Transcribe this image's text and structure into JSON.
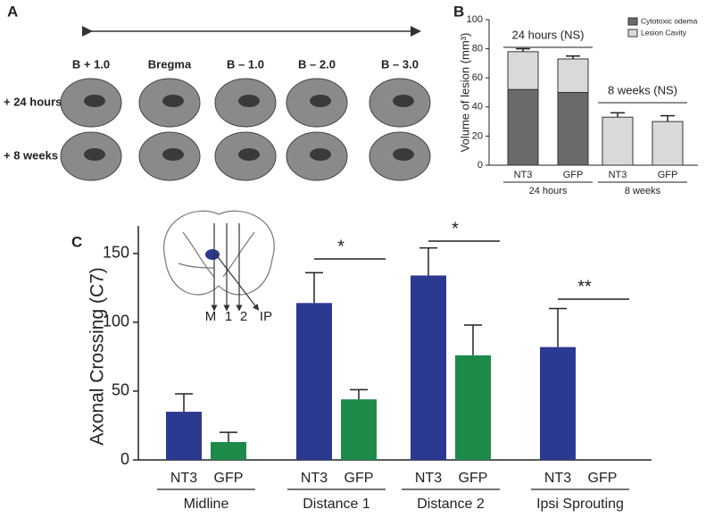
{
  "panel_a": {
    "panel_label": "A",
    "columns": [
      "B + 1.0",
      "Bregma",
      "B – 1.0",
      "B – 2.0",
      "B – 3.0"
    ],
    "rows": [
      "+ 24 hours",
      "+ 8 weeks"
    ]
  },
  "chart_data": [
    {
      "type": "stacked-bar",
      "panel_label": "B",
      "y_label": "Volume of lesion (mm³)",
      "categories": [
        "NT3",
        "GFP",
        "NT3",
        "GFP"
      ],
      "groups": [
        "24 hours",
        "8 weeks"
      ],
      "annotations": [
        "24 hours (NS)",
        "8 weeks (NS)"
      ],
      "series": [
        {
          "name": "Cytotoxic odema",
          "color": "#6a6a6a",
          "values": [
            52,
            50,
            null,
            null
          ],
          "errors": [
            6,
            6,
            null,
            null
          ]
        },
        {
          "name": "Lesion Cavity",
          "color": "#d9d9d9",
          "values": [
            26,
            23,
            33,
            30
          ],
          "errors": [
            2,
            2,
            3,
            4
          ]
        }
      ],
      "ylim": [
        0,
        100
      ],
      "yticks": [
        0,
        20,
        40,
        60,
        80,
        100
      ],
      "legend": "top-right"
    },
    {
      "type": "grouped-bar",
      "panel_label": "C",
      "y_label": "Axonal Crossing (C7)",
      "categories": [
        "Midline",
        "Distance 1",
        "Distance 2",
        "Ipsi Sprouting"
      ],
      "series": [
        {
          "name": "NT3",
          "color": "#2b3990",
          "values": [
            35,
            114,
            134,
            82
          ],
          "errors": [
            13,
            22,
            20,
            28
          ]
        },
        {
          "name": "GFP",
          "color": "#1e8a4a",
          "values": [
            13,
            44,
            76,
            0
          ],
          "errors": [
            7,
            7,
            22,
            null
          ]
        }
      ],
      "significance": [
        "*",
        "*",
        "**"
      ],
      "inset_labels": [
        "M",
        "1",
        "2",
        "IP"
      ],
      "ylim": [
        0,
        170
      ],
      "yticks": [
        0,
        50,
        100,
        150
      ]
    }
  ]
}
